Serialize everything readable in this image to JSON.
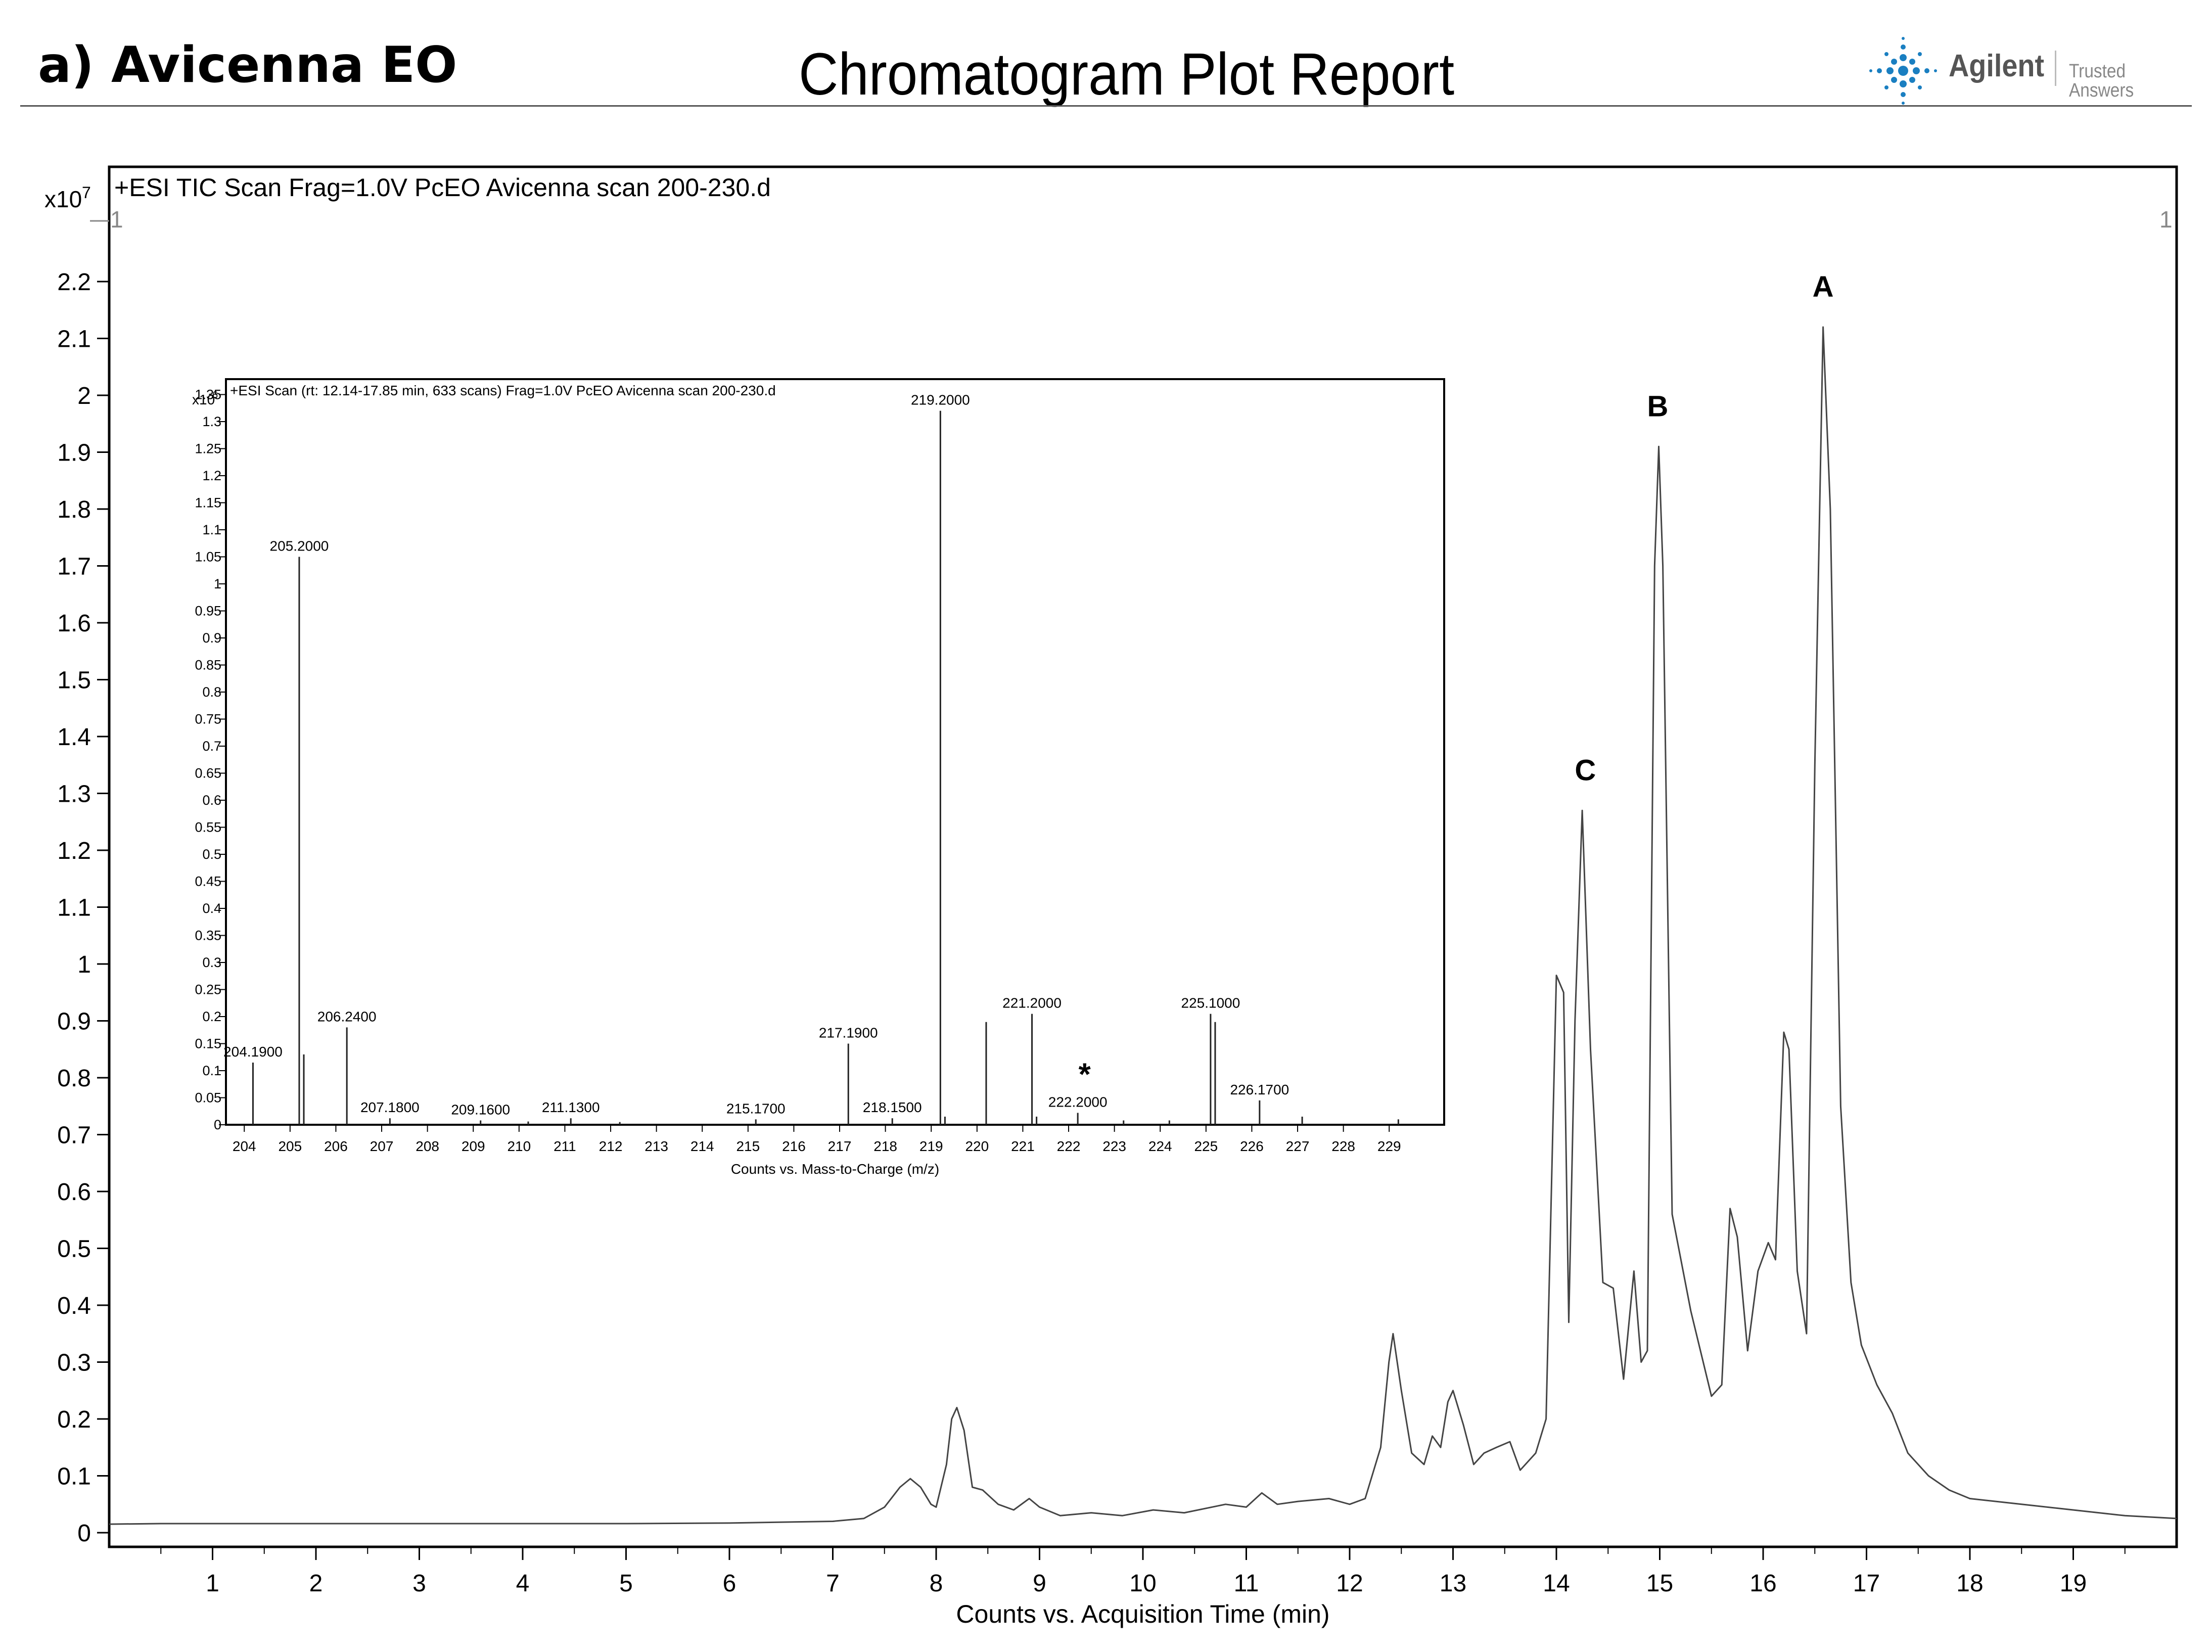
{
  "header": {
    "sample_label": "a) Avicenna EO",
    "report_title": "Chromatogram Plot Report",
    "brand_name": "Agilent",
    "brand_tagline": "Trusted Answers"
  },
  "chart_data": [
    {
      "id": "tic",
      "type": "line",
      "title": "+ESI TIC Scan Frag=1.0V PcEO Avicenna scan 200-230.d",
      "y_multiplier": "x10",
      "y_exponent": "7",
      "corner_labels": [
        "1",
        "1"
      ],
      "xlabel": "Counts vs. Acquisition Time (min)",
      "ylabel": "",
      "xlim": [
        0,
        20
      ],
      "ylim": [
        0,
        2.22
      ],
      "x_ticks": [
        "1",
        "2",
        "3",
        "4",
        "5",
        "6",
        "7",
        "8",
        "9",
        "10",
        "11",
        "12",
        "13",
        "14",
        "15",
        "16",
        "17",
        "18",
        "19"
      ],
      "y_ticks": [
        "0",
        "0.1",
        "0.2",
        "0.3",
        "0.4",
        "0.5",
        "0.6",
        "0.7",
        "0.8",
        "0.9",
        "1",
        "1.1",
        "1.2",
        "1.3",
        "1.4",
        "1.5",
        "1.6",
        "1.7",
        "1.8",
        "1.9",
        "2",
        "2.1",
        "2.2"
      ],
      "peak_labels": [
        {
          "label": "A",
          "x": 16.58,
          "y": 2.12
        },
        {
          "label": "B",
          "x": 14.98,
          "y": 1.91
        },
        {
          "label": "C",
          "x": 14.28,
          "y": 1.27
        }
      ],
      "series": [
        {
          "points": [
            [
              0,
              0.015
            ],
            [
              0.5,
              0.016
            ],
            [
              1,
              0.016
            ],
            [
              2,
              0.016
            ],
            [
              3,
              0.016
            ],
            [
              4,
              0.016
            ],
            [
              5,
              0.016
            ],
            [
              6,
              0.017
            ],
            [
              7,
              0.02
            ],
            [
              7.3,
              0.025
            ],
            [
              7.5,
              0.045
            ],
            [
              7.65,
              0.08
            ],
            [
              7.75,
              0.095
            ],
            [
              7.85,
              0.08
            ],
            [
              7.95,
              0.05
            ],
            [
              8.0,
              0.045
            ],
            [
              8.1,
              0.12
            ],
            [
              8.15,
              0.2
            ],
            [
              8.2,
              0.22
            ],
            [
              8.27,
              0.18
            ],
            [
              8.35,
              0.08
            ],
            [
              8.45,
              0.075
            ],
            [
              8.6,
              0.05
            ],
            [
              8.75,
              0.04
            ],
            [
              8.9,
              0.06
            ],
            [
              9.0,
              0.045
            ],
            [
              9.2,
              0.03
            ],
            [
              9.5,
              0.035
            ],
            [
              9.8,
              0.03
            ],
            [
              10.1,
              0.04
            ],
            [
              10.4,
              0.035
            ],
            [
              10.8,
              0.05
            ],
            [
              11.0,
              0.045
            ],
            [
              11.15,
              0.07
            ],
            [
              11.3,
              0.05
            ],
            [
              11.5,
              0.055
            ],
            [
              11.8,
              0.06
            ],
            [
              12.0,
              0.05
            ],
            [
              12.15,
              0.06
            ],
            [
              12.3,
              0.15
            ],
            [
              12.38,
              0.3
            ],
            [
              12.42,
              0.35
            ],
            [
              12.5,
              0.25
            ],
            [
              12.6,
              0.14
            ],
            [
              12.72,
              0.12
            ],
            [
              12.8,
              0.17
            ],
            [
              12.88,
              0.15
            ],
            [
              12.95,
              0.23
            ],
            [
              13.0,
              0.25
            ],
            [
              13.1,
              0.19
            ],
            [
              13.2,
              0.12
            ],
            [
              13.3,
              0.14
            ],
            [
              13.42,
              0.15
            ],
            [
              13.55,
              0.16
            ],
            [
              13.65,
              0.11
            ],
            [
              13.8,
              0.14
            ],
            [
              13.9,
              0.2
            ],
            [
              14.0,
              0.98
            ],
            [
              14.07,
              0.95
            ],
            [
              14.12,
              0.37
            ],
            [
              14.18,
              0.9
            ],
            [
              14.25,
              1.27
            ],
            [
              14.33,
              0.85
            ],
            [
              14.45,
              0.44
            ],
            [
              14.55,
              0.43
            ],
            [
              14.65,
              0.27
            ],
            [
              14.75,
              0.46
            ],
            [
              14.82,
              0.3
            ],
            [
              14.88,
              0.32
            ],
            [
              14.95,
              1.7
            ],
            [
              14.99,
              1.91
            ],
            [
              15.03,
              1.7
            ],
            [
              15.12,
              0.56
            ],
            [
              15.3,
              0.39
            ],
            [
              15.5,
              0.24
            ],
            [
              15.6,
              0.26
            ],
            [
              15.68,
              0.57
            ],
            [
              15.75,
              0.52
            ],
            [
              15.85,
              0.32
            ],
            [
              15.95,
              0.46
            ],
            [
              16.05,
              0.51
            ],
            [
              16.12,
              0.48
            ],
            [
              16.2,
              0.88
            ],
            [
              16.25,
              0.85
            ],
            [
              16.33,
              0.46
            ],
            [
              16.42,
              0.35
            ],
            [
              16.5,
              1.35
            ],
            [
              16.58,
              2.12
            ],
            [
              16.65,
              1.8
            ],
            [
              16.75,
              0.75
            ],
            [
              16.85,
              0.44
            ],
            [
              16.95,
              0.33
            ],
            [
              17.1,
              0.26
            ],
            [
              17.25,
              0.21
            ],
            [
              17.4,
              0.14
            ],
            [
              17.6,
              0.1
            ],
            [
              17.8,
              0.075
            ],
            [
              18.0,
              0.06
            ],
            [
              18.5,
              0.05
            ],
            [
              19.0,
              0.04
            ],
            [
              19.5,
              0.03
            ],
            [
              20.0,
              0.025
            ]
          ]
        }
      ]
    },
    {
      "id": "ms",
      "type": "bar",
      "title": "+ESI Scan (rt: 12.14-17.85 min, 633 scans) Frag=1.0V PcEO Avicenna scan 200-230.d",
      "y_multiplier": "x10",
      "y_exponent": "6",
      "xlabel": "Counts vs. Mass-to-Charge (m/z)",
      "ylabel": "",
      "xlim": [
        203.6,
        229.9
      ],
      "ylim": [
        0,
        1.38
      ],
      "x_ticks": [
        "204",
        "205",
        "206",
        "207",
        "208",
        "209",
        "210",
        "211",
        "212",
        "213",
        "214",
        "215",
        "216",
        "217",
        "218",
        "219",
        "220",
        "221",
        "222",
        "223",
        "224",
        "225",
        "226",
        "227",
        "228",
        "229"
      ],
      "y_ticks": [
        "0",
        "0.05",
        "0.1",
        "0.15",
        "0.2",
        "0.25",
        "0.3",
        "0.35",
        "0.4",
        "0.45",
        "0.5",
        "0.55",
        "0.6",
        "0.65",
        "0.7",
        "0.75",
        "0.8",
        "0.85",
        "0.9",
        "0.95",
        "1",
        "1.05",
        "1.1",
        "1.15",
        "1.2",
        "1.25",
        "1.3",
        "1.35"
      ],
      "annotation": "*",
      "peaks": [
        {
          "mz": 204.19,
          "value": 0.115,
          "label": "204.1900"
        },
        {
          "mz": 205.2,
          "value": 1.05,
          "label": "205.2000"
        },
        {
          "mz": 205.3,
          "value": 0.13,
          "label": ""
        },
        {
          "mz": 206.24,
          "value": 0.18,
          "label": "206.2400"
        },
        {
          "mz": 207.18,
          "value": 0.012,
          "label": "207.1800"
        },
        {
          "mz": 209.16,
          "value": 0.008,
          "label": "209.1600"
        },
        {
          "mz": 210.2,
          "value": 0.006,
          "label": ""
        },
        {
          "mz": 211.13,
          "value": 0.012,
          "label": "211.1300"
        },
        {
          "mz": 212.2,
          "value": 0.005,
          "label": ""
        },
        {
          "mz": 215.17,
          "value": 0.01,
          "label": "215.1700"
        },
        {
          "mz": 217.19,
          "value": 0.15,
          "label": "217.1900"
        },
        {
          "mz": 218.15,
          "value": 0.012,
          "label": "218.1500"
        },
        {
          "mz": 219.2,
          "value": 1.32,
          "label": "219.2000"
        },
        {
          "mz": 219.3,
          "value": 0.015,
          "label": ""
        },
        {
          "mz": 220.2,
          "value": 0.19,
          "label": ""
        },
        {
          "mz": 221.2,
          "value": 0.205,
          "label": "221.2000"
        },
        {
          "mz": 221.3,
          "value": 0.015,
          "label": ""
        },
        {
          "mz": 222.2,
          "value": 0.022,
          "label": "222.2000"
        },
        {
          "mz": 223.2,
          "value": 0.008,
          "label": ""
        },
        {
          "mz": 224.2,
          "value": 0.008,
          "label": ""
        },
        {
          "mz": 225.1,
          "value": 0.205,
          "label": "225.1000"
        },
        {
          "mz": 225.2,
          "value": 0.19,
          "label": ""
        },
        {
          "mz": 226.17,
          "value": 0.045,
          "label": "226.1700"
        },
        {
          "mz": 227.1,
          "value": 0.015,
          "label": ""
        },
        {
          "mz": 229.2,
          "value": 0.01,
          "label": ""
        }
      ]
    }
  ]
}
